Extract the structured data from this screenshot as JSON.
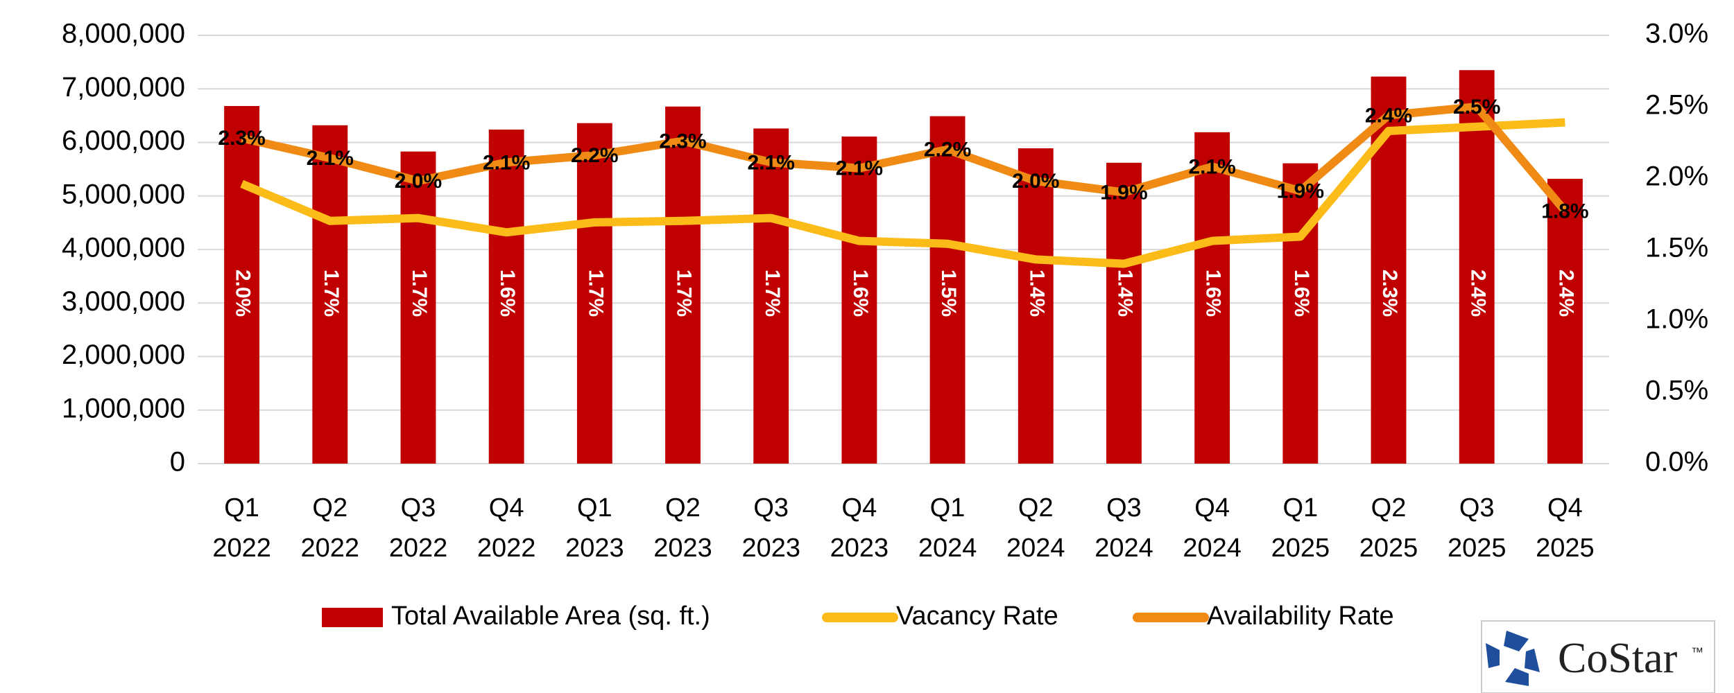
{
  "chart_data": {
    "type": "bar_line",
    "categories": [
      "Q1 2022",
      "Q2 2022",
      "Q3 2022",
      "Q4 2022",
      "Q1 2023",
      "Q2 2023",
      "Q3 2023",
      "Q4 2023",
      "Q1 2024",
      "Q2 2024",
      "Q3 2024",
      "Q4 2024",
      "Q1 2025",
      "Q2 2025",
      "Q3 2025",
      "Q4 2025"
    ],
    "series": [
      {
        "name": "Total Available Area (sq. ft.)",
        "type": "bar",
        "color": "#c00000",
        "values": [
          6680000,
          6320000,
          5830000,
          6240000,
          6360000,
          6670000,
          6260000,
          6110000,
          6490000,
          5890000,
          5620000,
          6190000,
          5610000,
          7230000,
          7350000,
          5320000
        ]
      },
      {
        "name": "Vacancy Rate",
        "type": "line",
        "axis": "y2",
        "color": "#fbbc1a",
        "values": [
          1.96,
          1.7,
          1.72,
          1.62,
          1.69,
          1.7,
          1.72,
          1.56,
          1.54,
          1.43,
          1.4,
          1.56,
          1.59,
          2.33,
          2.36,
          2.39
        ],
        "value_labels": [
          "2.0%",
          "1.7%",
          "1.7%",
          "1.6%",
          "1.7%",
          "1.7%",
          "1.7%",
          "1.6%",
          "1.5%",
          "1.4%",
          "1.4%",
          "1.6%",
          "1.6%",
          "2.3%",
          "2.4%",
          "2.4%"
        ]
      },
      {
        "name": "Availability Rate",
        "type": "line",
        "axis": "y2",
        "color": "#ef8a15",
        "values": [
          2.28,
          2.14,
          1.98,
          2.11,
          2.16,
          2.26,
          2.11,
          2.07,
          2.2,
          1.98,
          1.9,
          2.08,
          1.91,
          2.44,
          2.5,
          1.77
        ],
        "value_labels": [
          "2.3%",
          "2.1%",
          "2.0%",
          "2.1%",
          "2.2%",
          "2.3%",
          "2.1%",
          "2.1%",
          "2.2%",
          "2.0%",
          "1.9%",
          "2.1%",
          "1.9%",
          "2.4%",
          "2.5%",
          "1.8%"
        ]
      }
    ],
    "ylim": [
      0,
      8000000
    ],
    "yticks": [
      0,
      {
        "value": 1000000,
        "label": "1,000,000"
      },
      {
        "value": 2000000,
        "label": "2,000,000"
      },
      {
        "value": 3000000,
        "label": "3,000,000"
      },
      {
        "value": 4000000,
        "label": "4,000,000"
      },
      {
        "value": 5000000,
        "label": "5,000,000"
      },
      {
        "value": 6000000,
        "label": "6,000,000"
      },
      {
        "value": 7000000,
        "label": "7,000,000"
      },
      {
        "value": 8000000,
        "label": "8,000,000"
      }
    ],
    "y2lim": [
      0,
      3
    ],
    "y2ticks": [
      {
        "value": 0,
        "label": "0.0%"
      },
      {
        "value": 0.5,
        "label": "0.5%"
      },
      {
        "value": 1,
        "label": "1.0%"
      },
      {
        "value": 1.5,
        "label": "1.5%"
      },
      {
        "value": 2,
        "label": "2.0%"
      },
      {
        "value": 2.5,
        "label": "2.5%"
      },
      {
        "value": 3,
        "label": "3.0%"
      }
    ],
    "grid": true,
    "legend": "bottom"
  },
  "logo": {
    "text": "CoStar",
    "mark": "™"
  }
}
